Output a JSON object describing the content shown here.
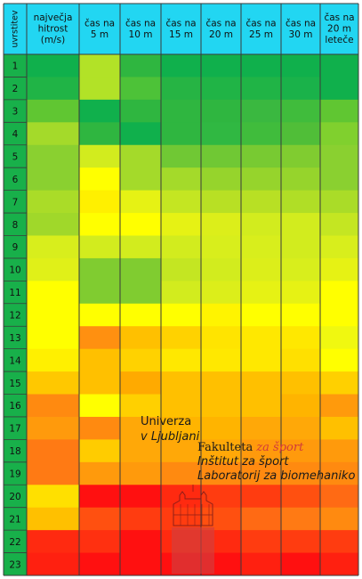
{
  "chart_data": {
    "type": "heatmap",
    "title": "",
    "columns": [
      "uvrstitev",
      "največja hitrost (m/s)",
      "čas na 5 m",
      "čas na 10 m",
      "čas na 15 m",
      "čas na 20 m",
      "čas na 25 m",
      "čas na 30 m",
      "čas na 20 m leteče"
    ],
    "rows": [
      "1",
      "2",
      "3",
      "4",
      "5",
      "6",
      "7",
      "8",
      "9",
      "10",
      "11",
      "12",
      "13",
      "14",
      "15",
      "16",
      "17",
      "18",
      "19",
      "20",
      "21",
      "22",
      "23"
    ],
    "color_scale": [
      "#00b050",
      "#ffff00",
      "#ff0000"
    ],
    "cell_colors": [
      [
        "#10b04c",
        "#b2e227",
        "#2fb640",
        "#10b04c",
        "#10b04c",
        "#10b04c",
        "#10b04c",
        "#10b04c"
      ],
      [
        "#20b446",
        "#b2e227",
        "#4dc238",
        "#26b444",
        "#20b446",
        "#20b446",
        "#1ab24a",
        "#10b04c"
      ],
      [
        "#60c632",
        "#10b04c",
        "#2fb640",
        "#2fb640",
        "#2fb640",
        "#3ab840",
        "#40bc3c",
        "#60c632"
      ],
      [
        "#a4da2a",
        "#2fb640",
        "#10b04c",
        "#2fb640",
        "#30b842",
        "#40bc3c",
        "#50be38",
        "#80d02e"
      ],
      [
        "#8ad030",
        "#d2ec1e",
        "#a4da2a",
        "#70c834",
        "#70c834",
        "#78ca32",
        "#80cc30",
        "#8ad030"
      ],
      [
        "#8ad030",
        "#ffff00",
        "#a4da2a",
        "#a4da2a",
        "#96d42c",
        "#96d42c",
        "#96d42c",
        "#8ad030"
      ],
      [
        "#aadc28",
        "#fff000",
        "#e6f214",
        "#c4e622",
        "#b8e024",
        "#b8e024",
        "#b0de26",
        "#aadc28"
      ],
      [
        "#a0d82a",
        "#ffff00",
        "#ffff00",
        "#e6f214",
        "#dcee1a",
        "#d2ec1e",
        "#d2ec1e",
        "#c4e622"
      ],
      [
        "#d8ee1c",
        "#d2ec1e",
        "#d2ec1e",
        "#d2ec1e",
        "#d8ee1c",
        "#d8ee1c",
        "#d2ec1e",
        "#d8ee1c"
      ],
      [
        "#e0f018",
        "#80cc30",
        "#80cc30",
        "#c4e622",
        "#d2ec1e",
        "#dcee1a",
        "#d8ee1c",
        "#e6f214"
      ],
      [
        "#ffff00",
        "#80cc30",
        "#80cc30",
        "#d2ec1e",
        "#dcee1a",
        "#e6f214",
        "#e6f214",
        "#ffff00"
      ],
      [
        "#ffff00",
        "#ffff00",
        "#ffff00",
        "#ffff00",
        "#fff400",
        "#ffff00",
        "#ffff00",
        "#ffff00"
      ],
      [
        "#ffff00",
        "#ff9010",
        "#ffc000",
        "#ffd200",
        "#ffe400",
        "#ffe800",
        "#ffe800",
        "#f0f810"
      ],
      [
        "#fff000",
        "#ffc000",
        "#ffd200",
        "#ffe800",
        "#ffe800",
        "#ffe800",
        "#ffe000",
        "#ffff00"
      ],
      [
        "#ffc800",
        "#ffc000",
        "#ffaa00",
        "#ffc000",
        "#ffc000",
        "#ffc000",
        "#ffc000",
        "#ffd000"
      ],
      [
        "#ff8a10",
        "#ffff00",
        "#ffd000",
        "#ffc000",
        "#ffc000",
        "#ffc000",
        "#ffb400",
        "#ff9a0c"
      ],
      [
        "#ff9a0c",
        "#ff8a10",
        "#ffa808",
        "#ffb400",
        "#ffb400",
        "#ffa808",
        "#ffa808",
        "#ffc000"
      ],
      [
        "#ff7a14",
        "#ffcc00",
        "#ffa808",
        "#ffa808",
        "#ffa808",
        "#ff9a0c",
        "#ff9a0c",
        "#ff9a0c"
      ],
      [
        "#ff7a14",
        "#ff9a0c",
        "#ff9a0c",
        "#ff8a10",
        "#ff8a10",
        "#ff8a10",
        "#ff8a10",
        "#ff8a10"
      ],
      [
        "#ffe000",
        "#ff1010",
        "#ff1010",
        "#ff2a10",
        "#ff3c10",
        "#ff3c10",
        "#ff5010",
        "#ff6a14"
      ],
      [
        "#ffc000",
        "#ff5010",
        "#ff3c10",
        "#ff3c10",
        "#ff5010",
        "#ff6a14",
        "#ff7a14",
        "#ff8a10"
      ],
      [
        "#ff2a10",
        "#ff3010",
        "#ff1010",
        "#ff2a10",
        "#ff2a10",
        "#ff3c10",
        "#ff3c10",
        "#ff3c10"
      ],
      [
        "#ff2010",
        "#ff1010",
        "#ff1010",
        "#ff1010",
        "#ff1010",
        "#ff2010",
        "#ff1010",
        "#ff2010"
      ]
    ]
  },
  "watermark": {
    "university_line1": "Univerza",
    "university_line2": "v Ljubljani",
    "faculty_prefix": "Fakulteta ",
    "faculty_suffix": "za šport",
    "institute": "Inštitut za šport",
    "laboratory": "Laboratorij za biomehaniko",
    "accent_color": "#d23a3a"
  }
}
